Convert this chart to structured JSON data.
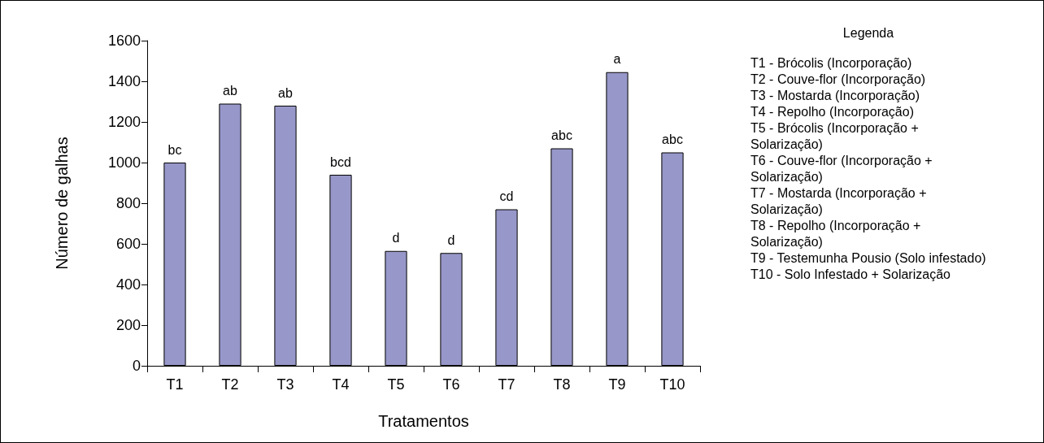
{
  "chart_data": {
    "type": "bar",
    "xlabel": "Tratamentos",
    "ylabel": "Número de galhas",
    "legend_title": "Legenda",
    "categories": [
      "T1",
      "T2",
      "T3",
      "T4",
      "T5",
      "T6",
      "T7",
      "T8",
      "T9",
      "T10"
    ],
    "values": [
      1000,
      1290,
      1280,
      940,
      565,
      555,
      770,
      1070,
      1445,
      1050
    ],
    "value_labels": [
      "bc",
      "ab",
      "ab",
      "bcd",
      "d",
      "d",
      "cd",
      "abc",
      "a",
      "abc"
    ],
    "color": "#9797c9",
    "ylim": [
      0,
      1600
    ],
    "yticks": [
      0,
      200,
      400,
      600,
      800,
      1000,
      1200,
      1400,
      1600
    ],
    "grid": false,
    "annotations": [
      "T1 - Brócolis (Incorporação)",
      "T2 - Couve-flor (Incorporação)",
      "T3 - Mostarda (Incorporação)",
      "T4 - Repolho (Incorporação)",
      "T5 - Brócolis (Incorporação + Solarização)",
      "T6 - Couve-flor (Incorporação + Solarização)",
      "T7 - Mostarda (Incorporação + Solarização)",
      "T8 - Repolho (Incorporação + Solarização)",
      "T9 - Testemunha Pousio (Solo infestado)",
      "T10 - Solo Infestado + Solarização"
    ]
  }
}
